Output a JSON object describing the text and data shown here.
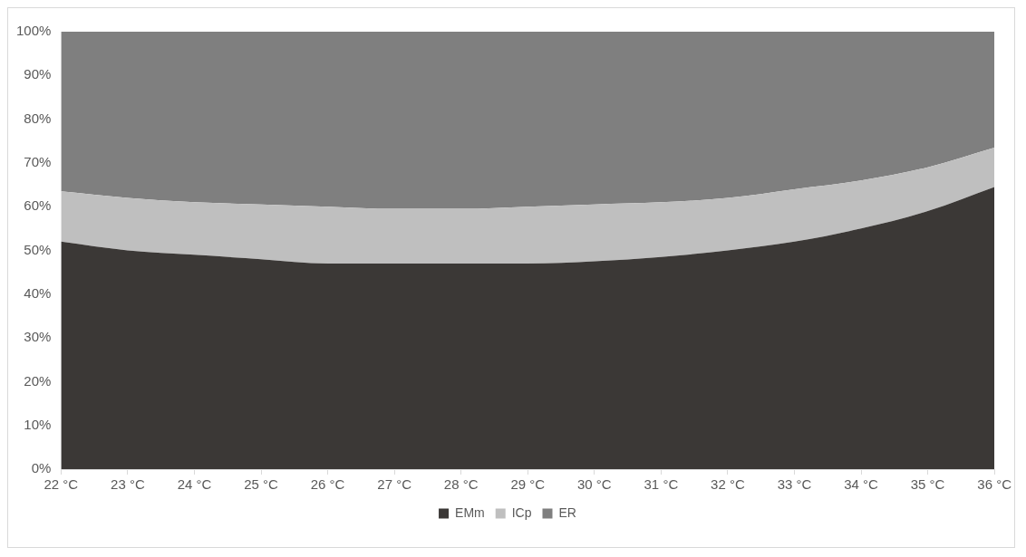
{
  "chart_data": {
    "type": "area",
    "stacked": true,
    "categories": [
      "22 °C",
      "23 °C",
      "24 °C",
      "25 °C",
      "26 °C",
      "27 °C",
      "28 °C",
      "29 °C",
      "30 °C",
      "31 °C",
      "32 °C",
      "33 °C",
      "34 °C",
      "35 °C",
      "36 °C"
    ],
    "series": [
      {
        "name": "EMm",
        "color": "#3b3836",
        "values": [
          52,
          50,
          49,
          48,
          47,
          47,
          47,
          47,
          47.5,
          48.5,
          50,
          52,
          55,
          59,
          64.5
        ]
      },
      {
        "name": "ICp",
        "color": "#bfbfbf",
        "values": [
          11.5,
          12,
          12,
          12.5,
          13,
          12.5,
          12.5,
          13,
          13,
          12.5,
          12,
          12,
          11,
          10,
          9
        ]
      },
      {
        "name": "ER",
        "color": "#7f7f7f",
        "values": [
          36.5,
          38,
          39,
          39.5,
          40,
          40.5,
          40.5,
          40,
          39.5,
          39,
          38,
          36,
          34,
          31,
          26.5
        ]
      }
    ],
    "ylim": [
      0,
      100
    ],
    "yticks": [
      {
        "value": 0,
        "label": "0%"
      },
      {
        "value": 10,
        "label": "10%"
      },
      {
        "value": 20,
        "label": "20%"
      },
      {
        "value": 30,
        "label": "30%"
      },
      {
        "value": 40,
        "label": "40%"
      },
      {
        "value": 50,
        "label": "50%"
      },
      {
        "value": 60,
        "label": "60%"
      },
      {
        "value": 70,
        "label": "70%"
      },
      {
        "value": 80,
        "label": "80%"
      },
      {
        "value": 90,
        "label": "90%"
      },
      {
        "value": 100,
        "label": "100%"
      }
    ],
    "grid": false,
    "legend": "bottom"
  }
}
